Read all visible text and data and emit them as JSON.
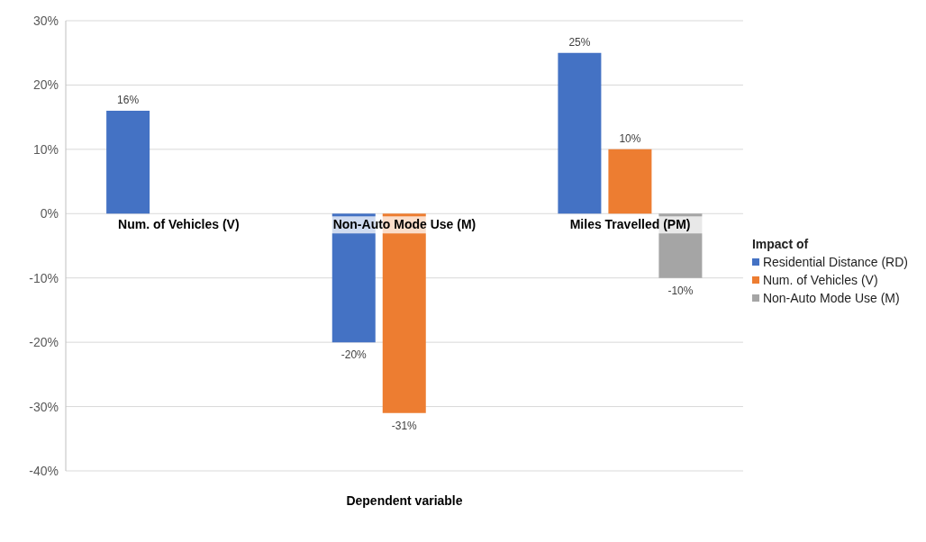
{
  "chart_data": {
    "type": "bar",
    "xlabel": "Dependent variable",
    "legend_title": "Impact of",
    "categories": [
      "Num. of Vehicles (V)",
      "Non-Auto Mode Use (M)",
      "Miles Travelled (PM)"
    ],
    "series": [
      {
        "name": "Residential Distance (RD)",
        "color": "#4472c4",
        "values": [
          16,
          -20,
          25
        ],
        "value_labels": [
          "16%",
          "-20%",
          "25%"
        ]
      },
      {
        "name": "Num. of Vehicles (V)",
        "color": "#ed7d31",
        "values": [
          null,
          -31,
          10
        ],
        "value_labels": [
          null,
          "-31%",
          "10%"
        ]
      },
      {
        "name": "Non-Auto Mode Use (M)",
        "color": "#a5a5a5",
        "values": [
          null,
          null,
          -10
        ],
        "value_labels": [
          null,
          null,
          "-10%"
        ]
      }
    ],
    "ylim": [
      -40,
      30
    ],
    "yticks": [
      {
        "value": -40,
        "label": "-40%"
      },
      {
        "value": -30,
        "label": "-30%"
      },
      {
        "value": -20,
        "label": "-20%"
      },
      {
        "value": -10,
        "label": "-10%"
      },
      {
        "value": 0,
        "label": "0%"
      },
      {
        "value": 10,
        "label": "10%"
      },
      {
        "value": 20,
        "label": "20%"
      },
      {
        "value": 30,
        "label": "30%"
      }
    ],
    "grid": "y",
    "legend": "right"
  }
}
